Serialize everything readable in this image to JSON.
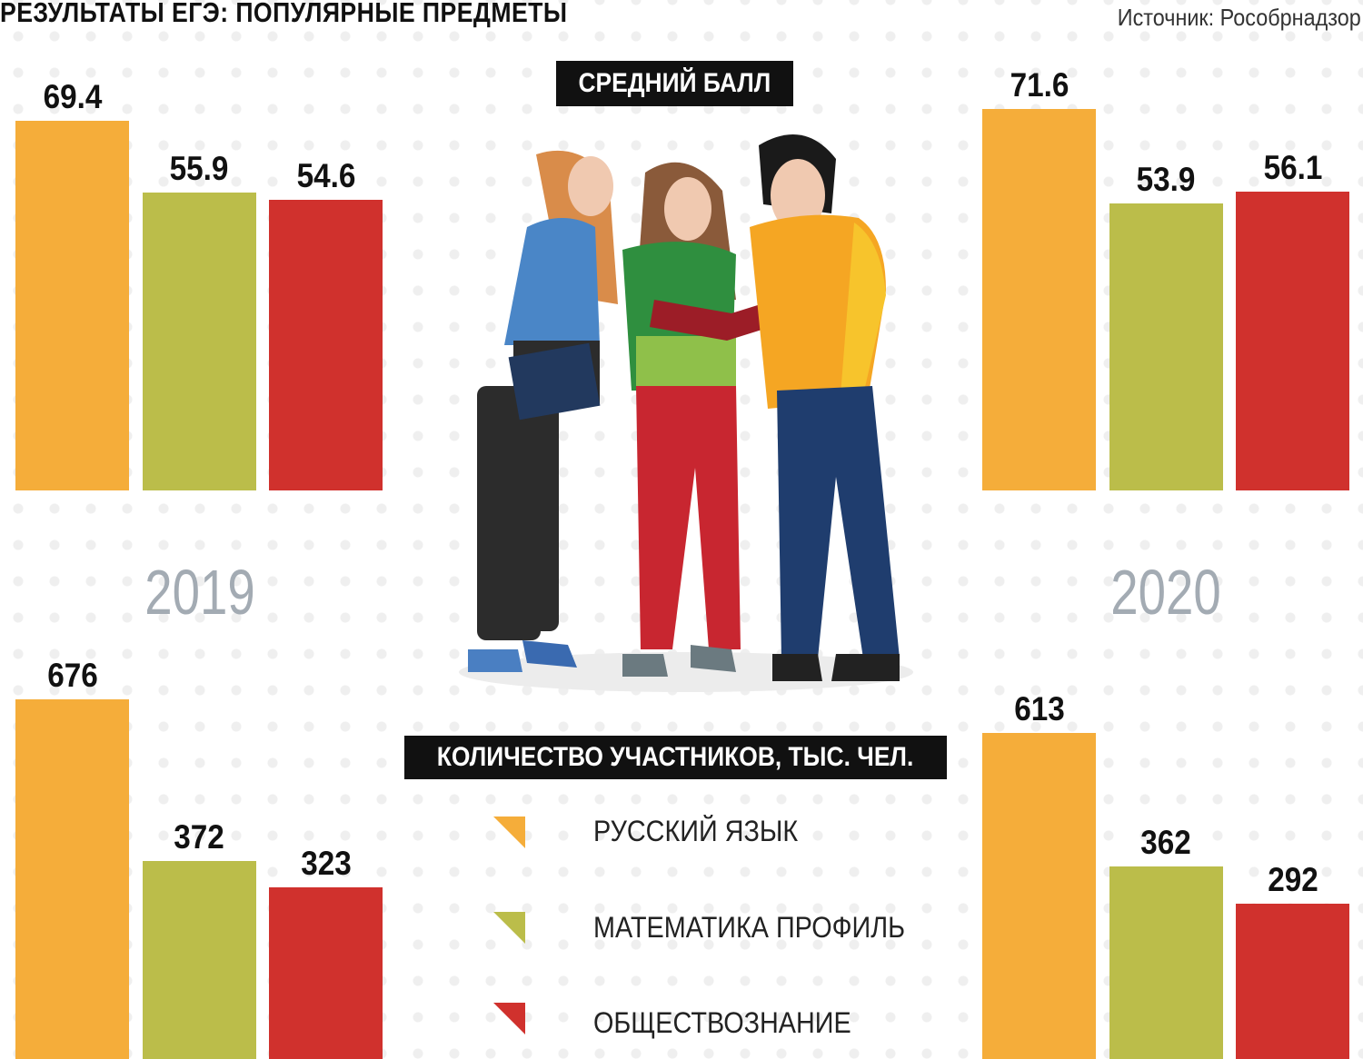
{
  "title": "РЕЗУЛЬТАТЫ ЕГЭ: ПОПУЛЯРНЫЕ ПРЕДМЕТЫ",
  "source": "Источник: Рособрнадзор",
  "colors": {
    "russian": "#F5AD3A",
    "math": "#BBBD4A",
    "social": "#D0312D"
  },
  "chart_data": [
    {
      "type": "bar",
      "title": "СРЕДНИЙ БАЛЛ",
      "year": "2019",
      "categories": [
        "РУССКИЙ ЯЗЫК",
        "МАТЕМАТИКА ПРОФИЛЬ",
        "ОБЩЕСТВОЗНАНИЕ"
      ],
      "values": [
        69.4,
        55.9,
        54.6
      ],
      "labels": [
        "69.4",
        "55.9",
        "54.6"
      ]
    },
    {
      "type": "bar",
      "title": "СРЕДНИЙ БАЛЛ",
      "year": "2020",
      "categories": [
        "РУССКИЙ ЯЗЫК",
        "МАТЕМАТИКА ПРОФИЛЬ",
        "ОБЩЕСТВОЗНАНИЕ"
      ],
      "values": [
        71.6,
        53.9,
        56.1
      ],
      "labels": [
        "71.6",
        "53.9",
        "56.1"
      ]
    },
    {
      "type": "bar",
      "title": "КОЛИЧЕСТВО УЧАСТНИКОВ, ТЫС. ЧЕЛ.",
      "year": "2019",
      "categories": [
        "РУССКИЙ ЯЗЫК",
        "МАТЕМАТИКА ПРОФИЛЬ",
        "ОБЩЕСТВОЗНАНИЕ"
      ],
      "values": [
        676,
        372,
        323
      ],
      "labels": [
        "676",
        "372",
        "323"
      ]
    },
    {
      "type": "bar",
      "title": "КОЛИЧЕСТВО УЧАСТНИКОВ, ТЫС. ЧЕЛ.",
      "year": "2020",
      "categories": [
        "РУССКИЙ ЯЗЫК",
        "МАТЕМАТИКА ПРОФИЛЬ",
        "ОБЩЕСТВОЗНАНИЕ"
      ],
      "values": [
        613,
        362,
        292
      ],
      "labels": [
        "613",
        "362",
        "292"
      ]
    }
  ],
  "headings": {
    "avg": "СРЕДНИЙ БАЛЛ",
    "count": "КОЛИЧЕСТВО УЧАСТНИКОВ, ТЫС. ЧЕЛ."
  },
  "years": [
    "2019",
    "2020"
  ],
  "legend": [
    {
      "label": "РУССКИЙ ЯЗЫК",
      "color": "#F5AD3A"
    },
    {
      "label": "МАТЕМАТИКА ПРОФИЛЬ",
      "color": "#BBBD4A"
    },
    {
      "label": "ОБЩЕСТВОЗНАНИЕ",
      "color": "#D0312D"
    }
  ]
}
